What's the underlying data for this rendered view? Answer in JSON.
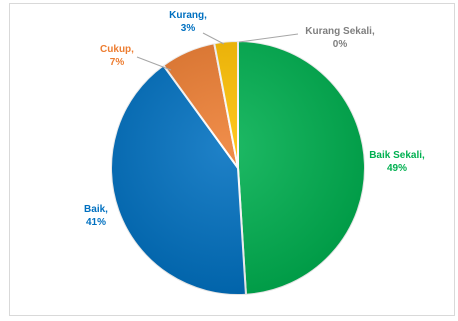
{
  "chart_data": {
    "type": "pie",
    "slices": [
      {
        "label": "Baik Sekali",
        "value": 49,
        "value_text": "49%",
        "color": "#00b050"
      },
      {
        "label": "Baik",
        "value": 41,
        "value_text": "41%",
        "color": "#0070c0"
      },
      {
        "label": "Cukup",
        "value": 7,
        "value_text": "7%",
        "color": "#ed7d31"
      },
      {
        "label": "Kurang",
        "value": 3,
        "value_text": "3%",
        "color": "#ffc000"
      },
      {
        "label": "Kurang Sekali",
        "value": 0,
        "value_text": "0%",
        "color": "#7f7f7f"
      }
    ],
    "label_colors": [
      "#00b050",
      "#0070c0",
      "#ed7d31",
      "#0070c0",
      "#7f7f7f"
    ],
    "start_angle_deg": 0,
    "direction": "clockwise",
    "legend": "none"
  }
}
